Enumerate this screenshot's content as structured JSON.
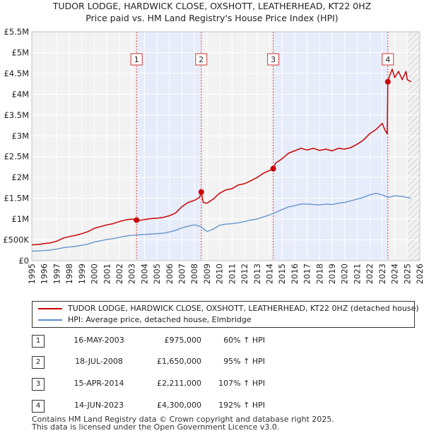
{
  "title": {
    "line1": "TUDOR LODGE, HARDWICK CLOSE, OXSHOTT, LEATHERHEAD, KT22 0HZ",
    "line2": "Price paid vs. HM Land Registry's House Price Index (HPI)"
  },
  "colors": {
    "property": "#cc0000",
    "hpi": "#5b8fcc",
    "shade": "#e6ecfa",
    "grid": "#d9d9d9",
    "marker_line": "#dd4444"
  },
  "legend": {
    "property_label": "TUDOR LODGE, HARDWICK CLOSE, OXSHOTT, LEATHERHEAD, KT22 0HZ (detached house)",
    "hpi_label": "HPI: Average price, detached house, Elmbridge"
  },
  "sales": [
    {
      "num": "1",
      "date": "16-MAY-2003",
      "price": "£975,000",
      "hpi": "60% ↑ HPI"
    },
    {
      "num": "2",
      "date": "18-JUL-2008",
      "price": "£1,650,000",
      "hpi": "95% ↑ HPI"
    },
    {
      "num": "3",
      "date": "15-APR-2014",
      "price": "£2,211,000",
      "hpi": "107% ↑ HPI"
    },
    {
      "num": "4",
      "date": "14-JUN-2023",
      "price": "£4,300,000",
      "hpi": "192% ↑ HPI"
    }
  ],
  "footer": {
    "line1": "Contains HM Land Registry data © Crown copyright and database right 2025.",
    "line2": "This data is licensed under the Open Government Licence v3.0."
  },
  "chart_data": {
    "type": "line",
    "title": "TUDOR LODGE, HARDWICK CLOSE, OXSHOTT, LEATHERHEAD, KT22 0HZ",
    "xlabel": "",
    "ylabel": "",
    "xlim": [
      1995,
      2026
    ],
    "ylim": [
      0,
      5500000
    ],
    "y_ticks": [
      0,
      500000,
      1000000,
      1500000,
      2000000,
      2500000,
      3000000,
      3500000,
      4000000,
      4500000,
      5000000,
      5500000
    ],
    "y_tick_labels": [
      "£0",
      "£500K",
      "£1M",
      "£1.5M",
      "£2M",
      "£2.5M",
      "£3M",
      "£3.5M",
      "£4M",
      "£4.5M",
      "£5M",
      "£5.5M"
    ],
    "x_ticks": [
      1995,
      1996,
      1997,
      1998,
      1999,
      2000,
      2001,
      2002,
      2003,
      2004,
      2005,
      2006,
      2007,
      2008,
      2009,
      2010,
      2011,
      2012,
      2013,
      2014,
      2015,
      2016,
      2017,
      2018,
      2019,
      2020,
      2021,
      2022,
      2023,
      2024,
      2025,
      2026
    ],
    "shaded_ranges": [
      [
        2003.37,
        2008.54
      ],
      [
        2014.29,
        2023.45
      ]
    ],
    "forecast_from": 2025.0,
    "sale_points": [
      {
        "label": "1",
        "x": 2003.37,
        "y": 975000
      },
      {
        "label": "2",
        "x": 2008.54,
        "y": 1650000
      },
      {
        "label": "3",
        "x": 2014.29,
        "y": 2211000
      },
      {
        "label": "4",
        "x": 2023.45,
        "y": 4300000
      }
    ],
    "series": [
      {
        "name": "TUDOR LODGE, HARDWICK CLOSE, OXSHOTT, LEATHERHEAD, KT22 0HZ (detached house)",
        "color": "#cc0000",
        "x": [
          1995.0,
          1995.5,
          1996.0,
          1996.5,
          1997.0,
          1997.5,
          1998.0,
          1998.5,
          1999.0,
          1999.5,
          2000.0,
          2000.5,
          2001.0,
          2001.5,
          2002.0,
          2002.5,
          2003.0,
          2003.37,
          2003.5,
          2004.0,
          2004.5,
          2005.0,
          2005.5,
          2006.0,
          2006.5,
          2007.0,
          2007.5,
          2008.0,
          2008.4,
          2008.54,
          2008.7,
          2009.0,
          2009.5,
          2010.0,
          2010.5,
          2011.0,
          2011.5,
          2012.0,
          2012.5,
          2013.0,
          2013.5,
          2014.0,
          2014.29,
          2014.5,
          2015.0,
          2015.5,
          2016.0,
          2016.5,
          2017.0,
          2017.5,
          2018.0,
          2018.5,
          2019.0,
          2019.5,
          2020.0,
          2020.5,
          2021.0,
          2021.5,
          2022.0,
          2022.5,
          2023.0,
          2023.2,
          2023.4,
          2023.45,
          2023.6,
          2023.8,
          2024.0,
          2024.3,
          2024.6,
          2024.9,
          2025.0,
          2025.3
        ],
        "y": [
          380000,
          390000,
          410000,
          430000,
          470000,
          540000,
          580000,
          610000,
          650000,
          700000,
          780000,
          820000,
          860000,
          890000,
          940000,
          980000,
          1000000,
          975000,
          960000,
          990000,
          1010000,
          1020000,
          1040000,
          1080000,
          1150000,
          1300000,
          1400000,
          1450000,
          1520000,
          1650000,
          1400000,
          1380000,
          1480000,
          1620000,
          1700000,
          1730000,
          1820000,
          1850000,
          1920000,
          2000000,
          2100000,
          2170000,
          2211000,
          2350000,
          2450000,
          2580000,
          2640000,
          2700000,
          2660000,
          2700000,
          2650000,
          2680000,
          2640000,
          2700000,
          2680000,
          2720000,
          2800000,
          2900000,
          3050000,
          3150000,
          3300000,
          3150000,
          3050000,
          4300000,
          4450000,
          4600000,
          4400000,
          4550000,
          4350000,
          4550000,
          4350000,
          4300000
        ]
      },
      {
        "name": "HPI: Average price, detached house, Elmbridge",
        "color": "#5b8fcc",
        "x": [
          1995.0,
          1995.5,
          1996.0,
          1996.5,
          1997.0,
          1997.5,
          1998.0,
          1998.5,
          1999.0,
          1999.5,
          2000.0,
          2000.5,
          2001.0,
          2001.5,
          2002.0,
          2002.5,
          2003.0,
          2003.5,
          2004.0,
          2004.5,
          2005.0,
          2005.5,
          2006.0,
          2006.5,
          2007.0,
          2007.5,
          2008.0,
          2008.5,
          2009.0,
          2009.5,
          2010.0,
          2010.5,
          2011.0,
          2011.5,
          2012.0,
          2012.5,
          2013.0,
          2013.5,
          2014.0,
          2014.5,
          2015.0,
          2015.5,
          2016.0,
          2016.5,
          2017.0,
          2017.5,
          2018.0,
          2018.5,
          2019.0,
          2019.5,
          2020.0,
          2020.5,
          2021.0,
          2021.5,
          2022.0,
          2022.5,
          2023.0,
          2023.5,
          2024.0,
          2024.5,
          2025.0,
          2025.3
        ],
        "y": [
          230000,
          235000,
          245000,
          255000,
          280000,
          310000,
          330000,
          345000,
          370000,
          400000,
          450000,
          480000,
          510000,
          530000,
          560000,
          590000,
          610000,
          620000,
          630000,
          640000,
          650000,
          660000,
          690000,
          730000,
          790000,
          830000,
          860000,
          820000,
          700000,
          760000,
          850000,
          880000,
          890000,
          910000,
          940000,
          980000,
          1000000,
          1050000,
          1100000,
          1160000,
          1230000,
          1290000,
          1320000,
          1360000,
          1360000,
          1350000,
          1340000,
          1360000,
          1350000,
          1380000,
          1400000,
          1440000,
          1480000,
          1520000,
          1580000,
          1620000,
          1580000,
          1520000,
          1560000,
          1550000,
          1520000,
          1500000
        ]
      }
    ]
  }
}
